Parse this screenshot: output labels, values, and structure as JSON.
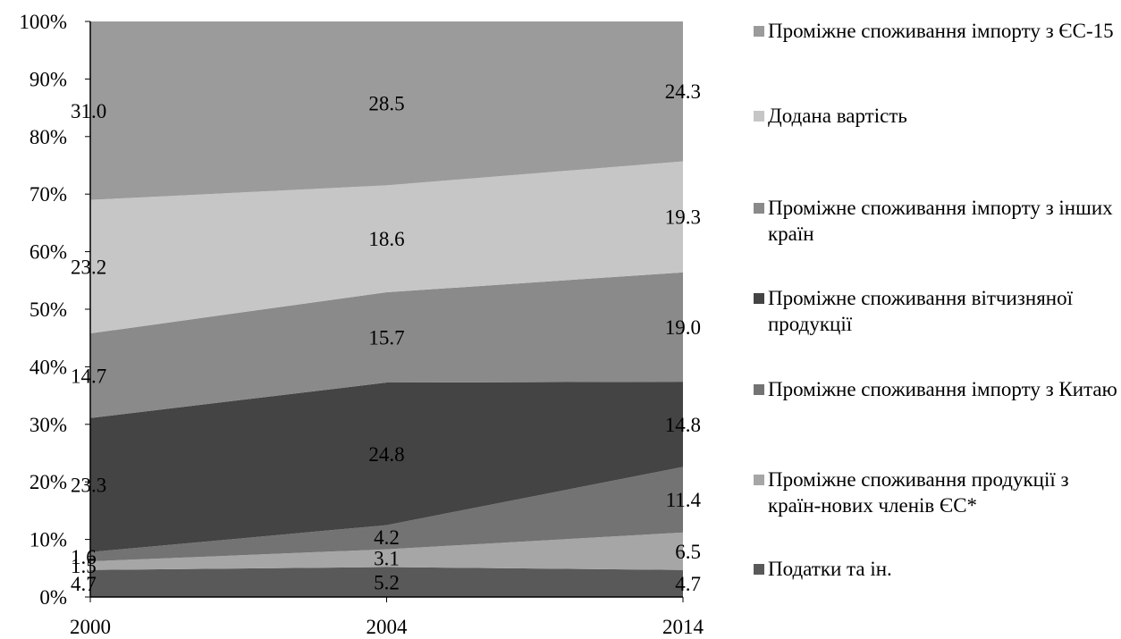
{
  "chart_data": {
    "type": "area",
    "stacked": "percent",
    "x": [
      "2000",
      "2004",
      "2014"
    ],
    "ylim": [
      0,
      100
    ],
    "y_ticks": [
      "0%",
      "10%",
      "20%",
      "30%",
      "40%",
      "50%",
      "60%",
      "70%",
      "80%",
      "90%",
      "100%"
    ],
    "grid": false,
    "legend_position": "right",
    "series": [
      {
        "name": "Податки та ін.",
        "values": [
          4.7,
          5.2,
          4.7
        ],
        "color": "#595959"
      },
      {
        "name": "Проміжне споживання продукції з країн-нових членів ЄС*",
        "values": [
          1.5,
          3.1,
          6.5
        ],
        "color": "#a6a6a6"
      },
      {
        "name": "Проміжне споживання імпорту з Китаю",
        "values": [
          1.6,
          4.2,
          11.4
        ],
        "color": "#737373"
      },
      {
        "name": "Проміжне споживання вітчизняної продукції",
        "values": [
          23.3,
          24.8,
          14.8
        ],
        "color": "#444444"
      },
      {
        "name": "Проміжне споживання імпорту з інших країн",
        "values": [
          14.7,
          15.7,
          19.0
        ],
        "color": "#8a8a8a"
      },
      {
        "name": "Додана вартість",
        "values": [
          23.2,
          18.6,
          19.3
        ],
        "color": "#c6c6c6"
      },
      {
        "name": "Проміжне споживання імпорту з ЄС-15",
        "values": [
          31.0,
          28.5,
          24.3
        ],
        "color": "#9b9b9b"
      }
    ],
    "data_labels": [
      [
        "4.7",
        "5.2",
        "4.7"
      ],
      [
        "1.5",
        "3.1",
        "6.5"
      ],
      [
        "1.6",
        "4.2",
        "11.4"
      ],
      [
        "23.3",
        "24.8",
        "14.8"
      ],
      [
        "14.7",
        "15.7",
        "19.0"
      ],
      [
        "23.2",
        "18.6",
        "19.3"
      ],
      [
        "31.0",
        "28.5",
        "24.3"
      ]
    ],
    "legend_order": [
      6,
      5,
      4,
      3,
      2,
      1,
      0
    ]
  }
}
